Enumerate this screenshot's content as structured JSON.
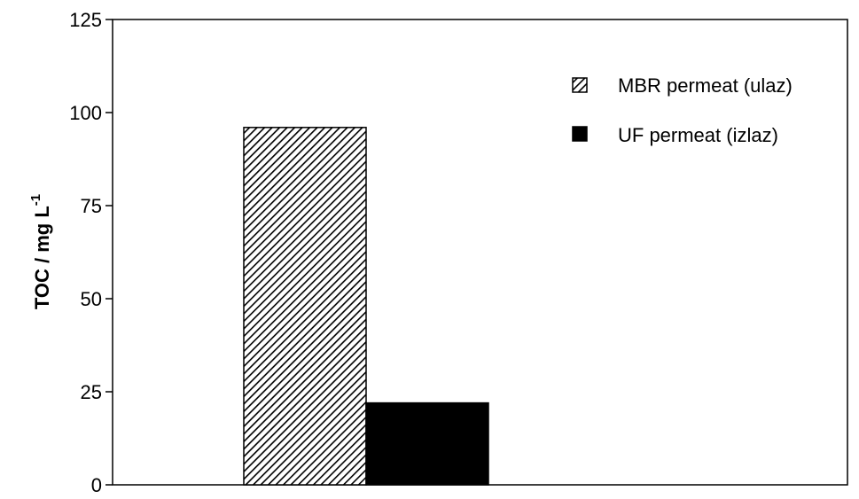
{
  "chart_data": {
    "type": "bar",
    "categories": [
      ""
    ],
    "series": [
      {
        "name": "MBR permeat (ulaz)",
        "values": [
          96
        ],
        "fill": "hatched"
      },
      {
        "name": "UF permeat (izlaz)",
        "values": [
          22
        ],
        "fill": "solid"
      }
    ],
    "xlabel": "",
    "ylabel": {
      "main": "TOC / mg L",
      "superscript": "-1"
    },
    "ylim": [
      0,
      125
    ],
    "yticks": [
      0,
      25,
      50,
      75,
      100,
      125
    ],
    "ytick_labels": [
      "0",
      "25",
      "50",
      "75",
      "100",
      "125"
    ],
    "grid": false,
    "legend_position": "top-right",
    "colors": {
      "bar": "#000000",
      "hatch_bg": "#ffffff",
      "axis": "#000000"
    }
  }
}
